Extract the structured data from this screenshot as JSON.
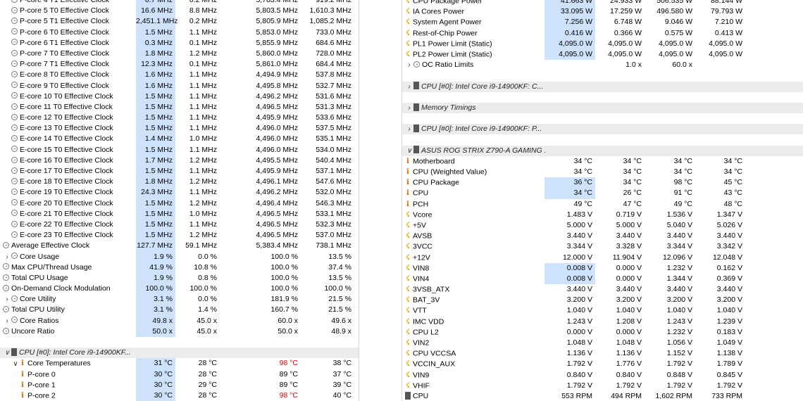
{
  "left_rows": [
    {
      "indent": 1,
      "icon": "clock",
      "name": "P-core 4 T1 Effective Clock",
      "v": [
        "0.7 MHz",
        "0.2 MHz",
        "5,783.4 MHz",
        "919.2 MHz"
      ]
    },
    {
      "indent": 1,
      "icon": "clock",
      "name": "P-core 5 T0 Effective Clock",
      "v": [
        "16.6 MHz",
        "8.8 MHz",
        "5,803.5 MHz",
        "1,610.3 MHz"
      ]
    },
    {
      "indent": 1,
      "icon": "clock",
      "name": "P-core 5 T1 Effective Clock",
      "v": [
        "2,451.1 MHz",
        "0.2 MHz",
        "5,805.9 MHz",
        "1,085.2 MHz"
      ]
    },
    {
      "indent": 1,
      "icon": "clock",
      "name": "P-core 6 T0 Effective Clock",
      "v": [
        "1.5 MHz",
        "1.1 MHz",
        "5,853.0 MHz",
        "733.0 MHz"
      ]
    },
    {
      "indent": 1,
      "icon": "clock",
      "name": "P-core 6 T1 Effective Clock",
      "v": [
        "0.3 MHz",
        "0.1 MHz",
        "5,855.9 MHz",
        "684.6 MHz"
      ]
    },
    {
      "indent": 1,
      "icon": "clock",
      "name": "P-core 7 T0 Effective Clock",
      "v": [
        "1.8 MHz",
        "1.2 MHz",
        "5,860.0 MHz",
        "728.0 MHz"
      ]
    },
    {
      "indent": 1,
      "icon": "clock",
      "name": "P-core 7 T1 Effective Clock",
      "v": [
        "12.3 MHz",
        "0.1 MHz",
        "5,861.0 MHz",
        "684.4 MHz"
      ]
    },
    {
      "indent": 1,
      "icon": "clock",
      "name": "E-core 8 T0 Effective Clock",
      "v": [
        "1.6 MHz",
        "1.1 MHz",
        "4,494.9 MHz",
        "537.8 MHz"
      ]
    },
    {
      "indent": 1,
      "icon": "clock",
      "name": "E-core 9 T0 Effective Clock",
      "v": [
        "1.6 MHz",
        "1.1 MHz",
        "4,495.8 MHz",
        "532.7 MHz"
      ]
    },
    {
      "indent": 1,
      "icon": "clock",
      "name": "E-core 10 T0 Effective Clock",
      "v": [
        "1.5 MHz",
        "1.1 MHz",
        "4,496.2 MHz",
        "531.6 MHz"
      ]
    },
    {
      "indent": 1,
      "icon": "clock",
      "name": "E-core 11 T0 Effective Clock",
      "v": [
        "1.5 MHz",
        "1.1 MHz",
        "4,496.5 MHz",
        "531.3 MHz"
      ]
    },
    {
      "indent": 1,
      "icon": "clock",
      "name": "E-core 12 T0 Effective Clock",
      "v": [
        "1.5 MHz",
        "1.1 MHz",
        "4,495.9 MHz",
        "533.6 MHz"
      ]
    },
    {
      "indent": 1,
      "icon": "clock",
      "name": "E-core 13 T0 Effective Clock",
      "v": [
        "1.5 MHz",
        "1.1 MHz",
        "4,496.0 MHz",
        "537.5 MHz"
      ]
    },
    {
      "indent": 1,
      "icon": "clock",
      "name": "E-core 14 T0 Effective Clock",
      "v": [
        "1.4 MHz",
        "1.0 MHz",
        "4,496.0 MHz",
        "535.1 MHz"
      ]
    },
    {
      "indent": 1,
      "icon": "clock",
      "name": "E-core 15 T0 Effective Clock",
      "v": [
        "1.5 MHz",
        "1.1 MHz",
        "4,496.0 MHz",
        "534.0 MHz"
      ]
    },
    {
      "indent": 1,
      "icon": "clock",
      "name": "E-core 16 T0 Effective Clock",
      "v": [
        "1.7 MHz",
        "1.2 MHz",
        "4,495.5 MHz",
        "540.4 MHz"
      ]
    },
    {
      "indent": 1,
      "icon": "clock",
      "name": "E-core 17 T0 Effective Clock",
      "v": [
        "1.5 MHz",
        "1.1 MHz",
        "4,495.9 MHz",
        "537.1 MHz"
      ]
    },
    {
      "indent": 1,
      "icon": "clock",
      "name": "E-core 18 T0 Effective Clock",
      "v": [
        "1.8 MHz",
        "1.2 MHz",
        "4,496.1 MHz",
        "547.6 MHz"
      ]
    },
    {
      "indent": 1,
      "icon": "clock",
      "name": "E-core 19 T0 Effective Clock",
      "v": [
        "24.3 MHz",
        "1.1 MHz",
        "4,496.2 MHz",
        "532.0 MHz"
      ]
    },
    {
      "indent": 1,
      "icon": "clock",
      "name": "E-core 20 T0 Effective Clock",
      "v": [
        "1.5 MHz",
        "1.2 MHz",
        "4,496.4 MHz",
        "546.3 MHz"
      ]
    },
    {
      "indent": 1,
      "icon": "clock",
      "name": "E-core 21 T0 Effective Clock",
      "v": [
        "1.5 MHz",
        "1.0 MHz",
        "4,496.5 MHz",
        "533.1 MHz"
      ]
    },
    {
      "indent": 1,
      "icon": "clock",
      "name": "E-core 22 T0 Effective Clock",
      "v": [
        "1.5 MHz",
        "1.1 MHz",
        "4,496.5 MHz",
        "532.3 MHz"
      ]
    },
    {
      "indent": 1,
      "icon": "clock",
      "name": "E-core 23 T0 Effective Clock",
      "v": [
        "1.5 MHz",
        "1.2 MHz",
        "4,496.5 MHz",
        "537.0 MHz"
      ]
    },
    {
      "indent": 0,
      "icon": "clock",
      "name": "Average Effective Clock",
      "v": [
        "127.7 MHz",
        "59.1 MHz",
        "5,383.4 MHz",
        "738.1 MHz"
      ]
    },
    {
      "indent": 0,
      "toggle": ">",
      "icon": "clock",
      "name": "Core Usage",
      "v": [
        "1.9 %",
        "0.0 %",
        "100.0 %",
        "13.5 %"
      ]
    },
    {
      "indent": 0,
      "icon": "clock",
      "name": "Max CPU/Thread Usage",
      "v": [
        "41.9 %",
        "10.8 %",
        "100.0 %",
        "37.4 %"
      ]
    },
    {
      "indent": 0,
      "icon": "clock",
      "name": "Total CPU Usage",
      "v": [
        "1.9 %",
        "0.8 %",
        "100.0 %",
        "13.5 %"
      ]
    },
    {
      "indent": 0,
      "icon": "clock",
      "name": "On-Demand Clock Modulation",
      "v": [
        "100.0 %",
        "100.0 %",
        "100.0 %",
        "100.0 %"
      ]
    },
    {
      "indent": 0,
      "toggle": ">",
      "icon": "clock",
      "name": "Core Utility",
      "v": [
        "3.1 %",
        "0.0 %",
        "181.9 %",
        "21.5 %"
      ]
    },
    {
      "indent": 0,
      "icon": "clock",
      "name": "Total CPU Utility",
      "v": [
        "3.1 %",
        "1.4 %",
        "160.7 %",
        "21.5 %"
      ]
    },
    {
      "indent": 0,
      "toggle": ">",
      "icon": "clock",
      "name": "Core Ratios",
      "v": [
        "49.8 x",
        "45.0 x",
        "60.0 x",
        "49.6 x"
      ]
    },
    {
      "indent": 0,
      "icon": "clock",
      "name": "Uncore Ratio",
      "v": [
        "50.0 x",
        "45.0 x",
        "50.0 x",
        "48.9 x"
      ]
    },
    {
      "blank": true
    },
    {
      "group": true,
      "toggle": "v",
      "icon": "chip",
      "name": "CPU [#0]: Intel Core i9-14900KF..."
    },
    {
      "indent": 1,
      "toggle": "v",
      "icon": "therm",
      "name": "Core Temperatures",
      "v": [
        "31 °C",
        "28 °C",
        "98 °C",
        "38 °C"
      ],
      "red": 2
    },
    {
      "indent": 2,
      "icon": "therm",
      "name": "P-core 0",
      "v": [
        "30 °C",
        "28 °C",
        "89 °C",
        "37 °C"
      ]
    },
    {
      "indent": 2,
      "icon": "therm",
      "name": "P-core 1",
      "v": [
        "30 °C",
        "29 °C",
        "89 °C",
        "39 °C"
      ]
    },
    {
      "indent": 2,
      "icon": "therm",
      "name": "P-core 2",
      "v": [
        "30 °C",
        "28 °C",
        "98 °C",
        "40 °C"
      ],
      "red": 2
    }
  ],
  "right_rows": [
    {
      "indent": 0,
      "icon": "bolt",
      "name": "CPU Package Power",
      "v": [
        "41.663 W",
        "24.933 W",
        "506.535 W",
        "88.144 W"
      ]
    },
    {
      "indent": 0,
      "icon": "bolt",
      "name": "IA Cores Power",
      "v": [
        "33.095 W",
        "17.259 W",
        "496.580 W",
        "79.793 W"
      ]
    },
    {
      "indent": 0,
      "icon": "bolt",
      "name": "System Agent Power",
      "v": [
        "7.256 W",
        "6.748 W",
        "9.046 W",
        "7.210 W"
      ]
    },
    {
      "indent": 0,
      "icon": "bolt",
      "name": "Rest-of-Chip Power",
      "v": [
        "0.416 W",
        "0.366 W",
        "0.575 W",
        "0.413 W"
      ]
    },
    {
      "indent": 0,
      "icon": "bolt",
      "name": "PL1 Power Limit (Static)",
      "v": [
        "4,095.0 W",
        "4,095.0 W",
        "4,095.0 W",
        "4,095.0 W"
      ]
    },
    {
      "indent": 0,
      "icon": "bolt",
      "name": "PL2 Power Limit (Static)",
      "v": [
        "4,095.0 W",
        "4,095.0 W",
        "4,095.0 W",
        "4,095.0 W"
      ]
    },
    {
      "indent": 0,
      "toggle": ">",
      "icon": "clock",
      "name": "OC Ratio Limits",
      "v": [
        "",
        "1.0 x",
        "60.0 x",
        ""
      ]
    },
    {
      "blank": true
    },
    {
      "group": true,
      "toggle": ">",
      "icon": "chip",
      "name": "CPU [#0]: Intel Core i9-14900KF: C..."
    },
    {
      "blank": true
    },
    {
      "group": true,
      "toggle": ">",
      "icon": "chip",
      "name": "Memory Timings"
    },
    {
      "blank": true
    },
    {
      "group": true,
      "toggle": ">",
      "icon": "chip",
      "name": "CPU [#0]: Intel Core i9-14900KF: P..."
    },
    {
      "blank": true
    },
    {
      "group": true,
      "toggle": "v",
      "icon": "chip",
      "name": "ASUS ROG STRIX Z790-A GAMING ..."
    },
    {
      "indent": 0,
      "icon": "therm",
      "name": "Motherboard",
      "v": [
        "34 °C",
        "34 °C",
        "34 °C",
        "34 °C"
      ]
    },
    {
      "indent": 0,
      "icon": "therm",
      "name": "CPU (Weighted Value)",
      "v": [
        "34 °C",
        "34 °C",
        "34 °C",
        "34 °C"
      ]
    },
    {
      "indent": 0,
      "icon": "therm",
      "name": "CPU Package",
      "v": [
        "36 °C",
        "34 °C",
        "98 °C",
        "45 °C"
      ]
    },
    {
      "indent": 0,
      "icon": "therm",
      "name": "CPU",
      "v": [
        "34 °C",
        "26 °C",
        "91 °C",
        "43 °C"
      ]
    },
    {
      "indent": 0,
      "icon": "therm",
      "name": "PCH",
      "v": [
        "49 °C",
        "47 °C",
        "49 °C",
        "48 °C"
      ]
    },
    {
      "indent": 0,
      "icon": "bolt",
      "name": "Vcore",
      "v": [
        "1.483 V",
        "0.719 V",
        "1.536 V",
        "1.347 V"
      ]
    },
    {
      "indent": 0,
      "icon": "bolt",
      "name": "+5V",
      "v": [
        "5.000 V",
        "5.000 V",
        "5.040 V",
        "5.026 V"
      ]
    },
    {
      "indent": 0,
      "icon": "bolt",
      "name": "AVSB",
      "v": [
        "3.440 V",
        "3.440 V",
        "3.440 V",
        "3.440 V"
      ]
    },
    {
      "indent": 0,
      "icon": "bolt",
      "name": "3VCC",
      "v": [
        "3.344 V",
        "3.328 V",
        "3.344 V",
        "3.342 V"
      ]
    },
    {
      "indent": 0,
      "icon": "bolt",
      "name": "+12V",
      "v": [
        "12.000 V",
        "11.904 V",
        "12.096 V",
        "12.048 V"
      ]
    },
    {
      "indent": 0,
      "icon": "bolt",
      "name": "VIN8",
      "v": [
        "0.008 V",
        "0.000 V",
        "1.232 V",
        "0.162 V"
      ]
    },
    {
      "indent": 0,
      "icon": "bolt",
      "name": "VIN4",
      "v": [
        "0.008 V",
        "0.000 V",
        "1.344 V",
        "0.369 V"
      ]
    },
    {
      "indent": 0,
      "icon": "bolt",
      "name": "3VSB_ATX",
      "v": [
        "3.440 V",
        "3.440 V",
        "3.440 V",
        "3.440 V"
      ]
    },
    {
      "indent": 0,
      "icon": "bolt",
      "name": "BAT_3V",
      "v": [
        "3.200 V",
        "3.200 V",
        "3.200 V",
        "3.200 V"
      ]
    },
    {
      "indent": 0,
      "icon": "bolt",
      "name": "VTT",
      "v": [
        "1.040 V",
        "1.040 V",
        "1.040 V",
        "1.040 V"
      ]
    },
    {
      "indent": 0,
      "icon": "bolt",
      "name": "IMC VDD",
      "v": [
        "1.243 V",
        "1.208 V",
        "1.243 V",
        "1.239 V"
      ]
    },
    {
      "indent": 0,
      "icon": "bolt",
      "name": "CPU L2",
      "v": [
        "0.000 V",
        "0.000 V",
        "1.232 V",
        "0.183 V"
      ]
    },
    {
      "indent": 0,
      "icon": "bolt",
      "name": "VIN2",
      "v": [
        "1.048 V",
        "1.048 V",
        "1.056 V",
        "1.049 V"
      ]
    },
    {
      "indent": 0,
      "icon": "bolt",
      "name": "CPU VCCSA",
      "v": [
        "1.136 V",
        "1.136 V",
        "1.152 V",
        "1.138 V"
      ]
    },
    {
      "indent": 0,
      "icon": "bolt",
      "name": "VCCIN_AUX",
      "v": [
        "1.792 V",
        "1.776 V",
        "1.792 V",
        "1.789 V"
      ]
    },
    {
      "indent": 0,
      "icon": "bolt",
      "name": "VIN9",
      "v": [
        "0.840 V",
        "0.840 V",
        "0.848 V",
        "0.845 V"
      ]
    },
    {
      "indent": 0,
      "icon": "bolt",
      "name": "VHIF",
      "v": [
        "1.792 V",
        "1.792 V",
        "1.792 V",
        "1.792 V"
      ]
    },
    {
      "indent": 0,
      "icon": "fan",
      "name": "CPU",
      "v": [
        "553 RPM",
        "494 RPM",
        "1,602 RPM",
        "733 RPM"
      ]
    }
  ],
  "colors": {
    "highlight": "#cfe2fb",
    "group_bg": "#ececec",
    "max_warn": "#e00000"
  }
}
